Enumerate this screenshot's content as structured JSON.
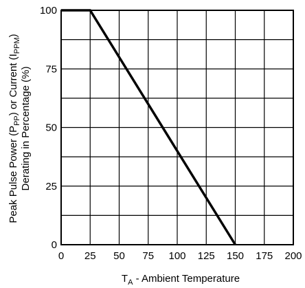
{
  "chart_data": {
    "type": "line",
    "x": [
      0,
      25,
      150
    ],
    "series": [
      {
        "values": [
          100,
          100,
          0
        ]
      }
    ],
    "xlim": [
      0,
      200
    ],
    "ylim": [
      0,
      100
    ],
    "x_ticks": [
      0,
      25,
      50,
      75,
      100,
      125,
      150,
      175,
      200
    ],
    "y_ticks": [
      0,
      25,
      50,
      75,
      100
    ],
    "grid": true,
    "xlabel": {
      "main": "T",
      "sub": "A",
      "rest": " - Ambient Temperature"
    },
    "ylabel": {
      "line1_a": "Peak Pulse Power (P",
      "line1_sub1": "PP",
      "line1_b": ") or Current (I",
      "line1_sub2": "PPM",
      "line1_c": ")",
      "line2": "Derating in Percentage (%)"
    }
  }
}
